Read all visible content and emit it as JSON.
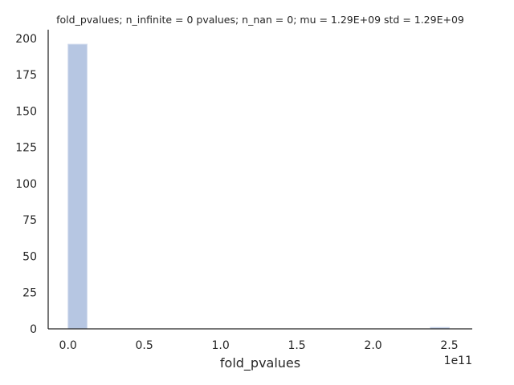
{
  "chart_data": {
    "type": "bar",
    "title": "fold_pvalues; n_infinite = 0 pvalues; n_nan = 0; mu = 1.29E+09 std = 1.29E+09",
    "xlabel": "fold_pvalues",
    "ylabel": "",
    "x_offset_label": "1e11",
    "xlim": [
      -0.13,
      2.65
    ],
    "ylim": [
      0,
      206
    ],
    "x_ticks": [
      0.0,
      0.5,
      1.0,
      1.5,
      2.0,
      2.5
    ],
    "x_tick_labels": [
      "0.0",
      "0.5",
      "1.0",
      "1.5",
      "2.0",
      "2.5"
    ],
    "y_ticks": [
      0,
      25,
      50,
      75,
      100,
      125,
      150,
      175,
      200
    ],
    "y_tick_labels": [
      "0",
      "25",
      "50",
      "75",
      "100",
      "125",
      "150",
      "175",
      "200"
    ],
    "bins": [
      {
        "x0": 0.0,
        "x1": 0.125,
        "count": 196
      },
      {
        "x0": 2.375,
        "x1": 2.5,
        "count": 1
      }
    ],
    "bar_color": "#b6c6e2",
    "bar_edge_color": "#d3dcee",
    "grid": false,
    "legend": "none"
  }
}
